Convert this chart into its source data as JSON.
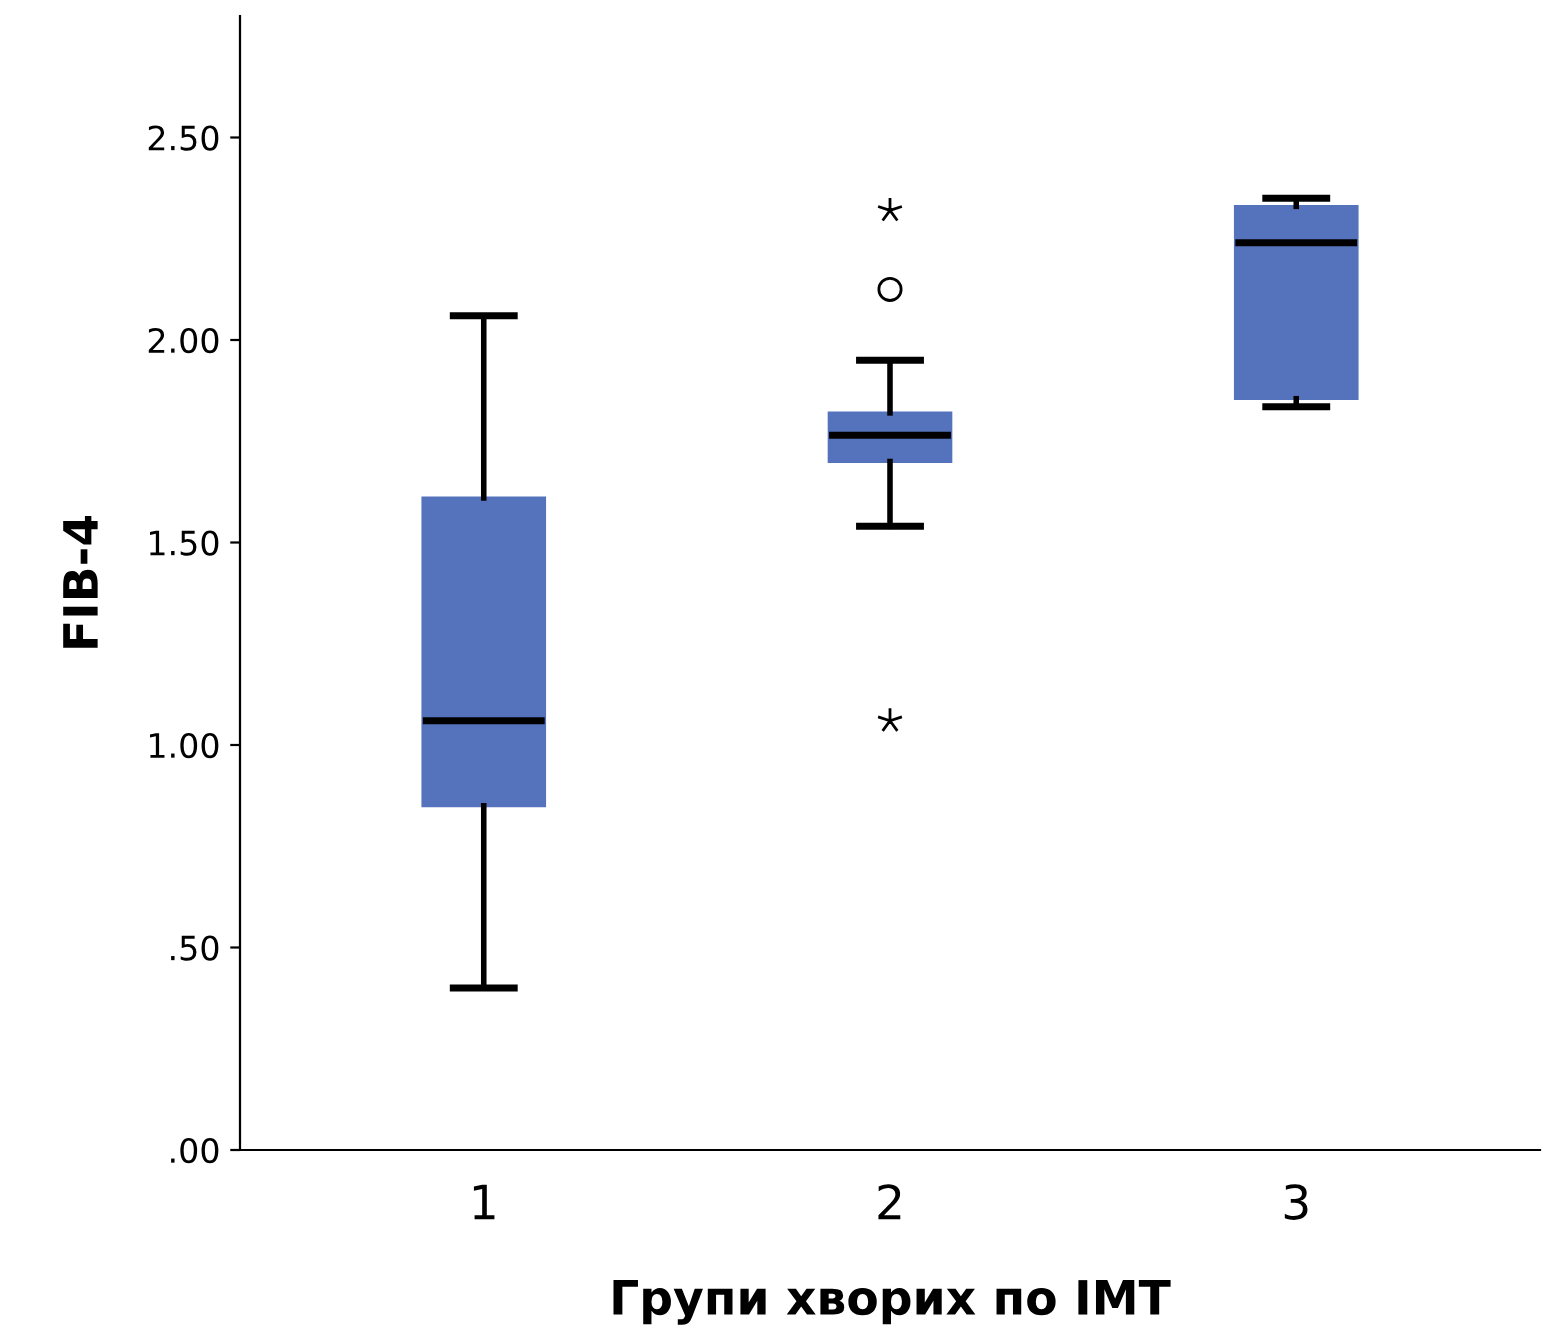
{
  "chart_data": {
    "type": "box",
    "xlabel": "Групи хворих по ІМТ",
    "ylabel": "FIB-4",
    "categories": [
      "1",
      "2",
      "3"
    ],
    "boxes": [
      {
        "low": 0.4,
        "q1": 0.85,
        "median": 1.06,
        "q3": 1.61,
        "high": 2.06
      },
      {
        "low": 1.54,
        "q1": 1.7,
        "median": 1.765,
        "q3": 1.82,
        "high": 1.95,
        "outliers": [
          2.32,
          2.125,
          1.06
        ]
      },
      {
        "low": 1.835,
        "q1": 1.855,
        "median": 2.24,
        "q3": 2.33,
        "high": 2.35
      }
    ],
    "color": "#5573bd",
    "ylim": [
      0,
      2.8
    ],
    "yticks": [
      {
        "value": 0,
        "label": ".00"
      },
      {
        "value": 0.5,
        "label": ".50"
      },
      {
        "value": 1.0,
        "label": "1.00"
      },
      {
        "value": 1.5,
        "label": "1.50"
      },
      {
        "value": 2.0,
        "label": "2.00"
      },
      {
        "value": 2.5,
        "label": "2.50"
      }
    ],
    "grid": false,
    "legend": false
  }
}
